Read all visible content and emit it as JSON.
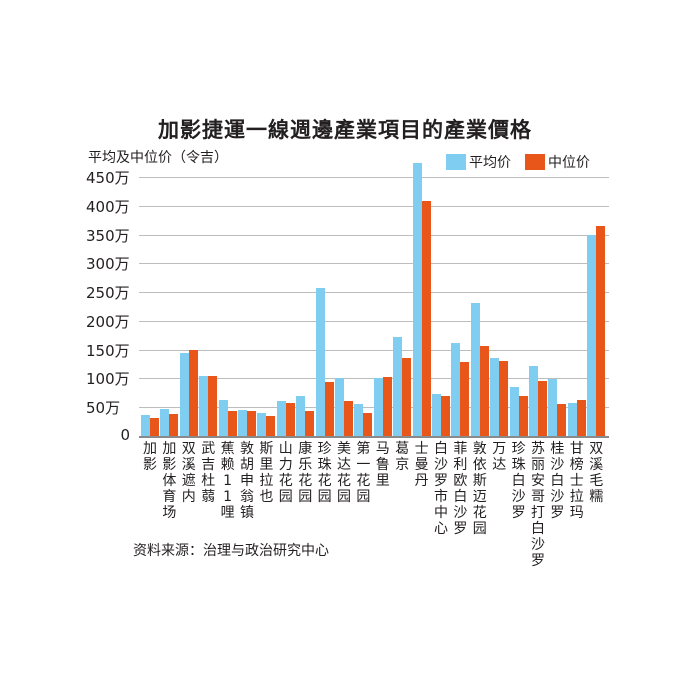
{
  "chart_data": {
    "type": "bar",
    "title": "加影捷運一線週邊產業項目的產業價格",
    "ylabel": "平均及中位价（令吉）",
    "xlabel": "",
    "ylim": [
      0,
      4500000
    ],
    "yticks": [
      "0",
      "50万",
      "100万",
      "150万",
      "200万",
      "250万",
      "300万",
      "350万",
      "400万",
      "450万"
    ],
    "legend_position": "top-right",
    "grid": true,
    "categories": [
      "加影",
      "加影体育场",
      "双溪遮内",
      "武吉杜蒻",
      "蕉赖11哩",
      "敦胡申翁镇",
      "斯里拉也",
      "山力花园",
      "康乐花园",
      "珍珠花园",
      "美达花园",
      "第一花园",
      "马鲁里",
      "葛京",
      "士曼丹",
      "白沙罗市中心",
      "菲利欧白沙罗",
      "敦依斯迈花园",
      "万达",
      "珍珠白沙罗",
      "苏丽安哥打白沙罗",
      "桂沙白沙罗",
      "甘榜士拉玛",
      "双溪毛糯"
    ],
    "series": [
      {
        "name": "平均价",
        "color": "#7fcdf0",
        "values": [
          370000,
          470000,
          1440000,
          1050000,
          630000,
          460000,
          400000,
          600000,
          690000,
          2580000,
          1000000,
          550000,
          1000000,
          1720000,
          4750000,
          730000,
          1610000,
          2310000,
          1350000,
          860000,
          1210000,
          990000,
          580000,
          3500000
        ]
      },
      {
        "name": "中位价",
        "color": "#e8561a",
        "values": [
          320000,
          390000,
          1490000,
          1050000,
          430000,
          430000,
          340000,
          580000,
          430000,
          930000,
          610000,
          400000,
          1020000,
          1360000,
          4080000,
          690000,
          1280000,
          1560000,
          1310000,
          700000,
          950000,
          560000,
          630000,
          3650000
        ]
      }
    ]
  },
  "title": "加影捷運一線週邊產業項目的產業價格",
  "ylabel": "平均及中位价（令吉）",
  "legend": {
    "avg": "平均价",
    "median": "中位价"
  },
  "source": "资料来源：治理与政治研究中心"
}
